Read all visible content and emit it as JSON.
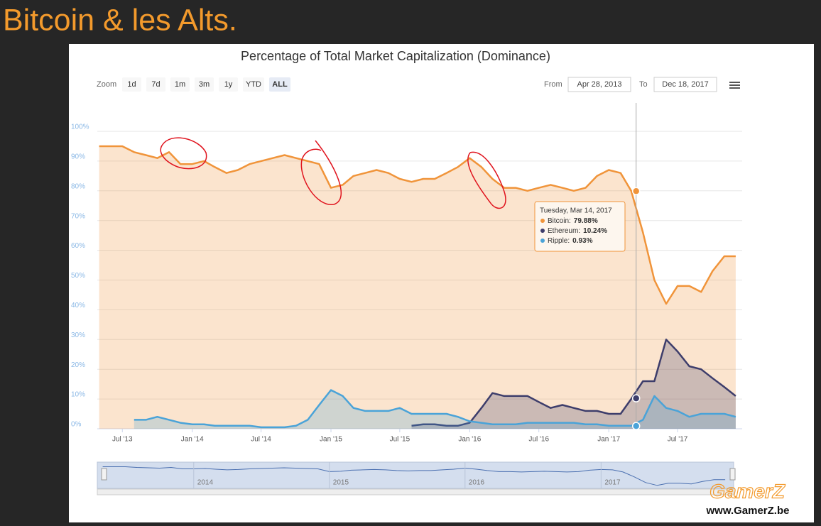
{
  "slide_title": "Bitcoin & les Alts.",
  "chart_data": {
    "type": "area",
    "title": "Percentage of Total Market Capitalization (Dominance)",
    "x": [
      "2013-05",
      "2013-06",
      "2013-07",
      "2013-08",
      "2013-09",
      "2013-10",
      "2013-11",
      "2013-12",
      "2014-01",
      "2014-02",
      "2014-03",
      "2014-04",
      "2014-05",
      "2014-06",
      "2014-07",
      "2014-08",
      "2014-09",
      "2014-10",
      "2014-11",
      "2014-12",
      "2015-01",
      "2015-02",
      "2015-03",
      "2015-04",
      "2015-05",
      "2015-06",
      "2015-07",
      "2015-08",
      "2015-09",
      "2015-10",
      "2015-11",
      "2015-12",
      "2016-01",
      "2016-02",
      "2016-03",
      "2016-04",
      "2016-05",
      "2016-06",
      "2016-07",
      "2016-08",
      "2016-09",
      "2016-10",
      "2016-11",
      "2016-12",
      "2017-01",
      "2017-02",
      "2017-03",
      "2017-04",
      "2017-05",
      "2017-06",
      "2017-07",
      "2017-08",
      "2017-09",
      "2017-10",
      "2017-11",
      "2017-12"
    ],
    "series": [
      {
        "name": "Bitcoin",
        "color": "#f0943a",
        "values": [
          95,
          95,
          95,
          93,
          92,
          91,
          93,
          89,
          89,
          90,
          88,
          86,
          87,
          89,
          90,
          91,
          92,
          91,
          90,
          89,
          81,
          82,
          85,
          86,
          87,
          86,
          84,
          83,
          84,
          84,
          86,
          88,
          91,
          88,
          84,
          81,
          81,
          80,
          81,
          82,
          81,
          80,
          81,
          85,
          87,
          86,
          80,
          66,
          50,
          42,
          48,
          48,
          46,
          53,
          58,
          58
        ]
      },
      {
        "name": "Ethereum",
        "color": "#3d3d6b",
        "values": [
          null,
          null,
          null,
          null,
          null,
          null,
          null,
          null,
          null,
          null,
          null,
          null,
          null,
          null,
          null,
          null,
          null,
          null,
          null,
          null,
          null,
          null,
          null,
          null,
          null,
          null,
          null,
          1,
          1.5,
          1.5,
          1,
          1,
          2,
          7,
          12,
          11,
          11,
          11,
          9,
          7,
          8,
          7,
          6,
          6,
          5,
          5,
          10,
          16,
          16,
          30,
          26,
          21,
          20,
          17,
          14,
          11
        ]
      },
      {
        "name": "Ripple",
        "color": "#4aa3d8",
        "values": [
          null,
          null,
          null,
          3,
          3,
          4,
          3,
          2,
          1.5,
          1.5,
          1,
          1,
          1,
          1,
          0.5,
          0.5,
          0.5,
          1,
          3,
          8,
          13,
          11,
          7,
          6,
          6,
          6,
          7,
          5,
          5,
          5,
          5,
          4,
          2.5,
          2,
          1.5,
          1.5,
          1.5,
          2,
          2,
          2,
          2,
          2,
          1.5,
          1.5,
          1,
          1,
          1,
          3,
          11,
          7,
          6,
          4,
          5,
          5,
          5,
          4
        ]
      }
    ],
    "xlim": [
      "Apr 28, 2013",
      "Dec 18, 2017"
    ],
    "xticks": [
      {
        "value": "2013-07",
        "label": "Jul '13"
      },
      {
        "value": "2014-01",
        "label": "Jan '14"
      },
      {
        "value": "2014-07",
        "label": "Jul '14"
      },
      {
        "value": "2015-01",
        "label": "Jan '15"
      },
      {
        "value": "2015-07",
        "label": "Jul '15"
      },
      {
        "value": "2016-01",
        "label": "Jan '16"
      },
      {
        "value": "2016-07",
        "label": "Jul '16"
      },
      {
        "value": "2017-01",
        "label": "Jan '17"
      },
      {
        "value": "2017-07",
        "label": "Jul '17"
      }
    ],
    "ylim": [
      0,
      100
    ],
    "yticks": [
      {
        "value": 0,
        "label": "0%"
      },
      {
        "value": 10,
        "label": "10%"
      },
      {
        "value": 20,
        "label": "20%"
      },
      {
        "value": 30,
        "label": "30%"
      },
      {
        "value": 40,
        "label": "40%"
      },
      {
        "value": 50,
        "label": "50%"
      },
      {
        "value": 60,
        "label": "60%"
      },
      {
        "value": 70,
        "label": "70%"
      },
      {
        "value": 80,
        "label": "80%"
      },
      {
        "value": 90,
        "label": "90%"
      },
      {
        "value": 100,
        "label": "100%"
      }
    ],
    "grid": true,
    "zoom_label": "Zoom",
    "zoom_buttons": [
      "1d",
      "7d",
      "1m",
      "3m",
      "1y",
      "YTD",
      "ALL"
    ],
    "zoom_selected": "ALL",
    "from_label": "From",
    "to_label": "To",
    "tooltip": {
      "date": "Tuesday, Mar 14, 2017",
      "items": [
        {
          "label": "Bitcoin:",
          "value": 79.88,
          "value_label": "79.88%"
        },
        {
          "label": "Ethereum:",
          "value": 10.24,
          "value_label": "10.24%"
        },
        {
          "label": "Ripple:",
          "value": 0.93,
          "value_label": "0.93%"
        }
      ]
    },
    "navigator_labels": [
      "2014",
      "2015",
      "2016",
      "2017"
    ]
  },
  "watermark": {
    "brand": "GamerZ",
    "url": "www.GamerZ.be"
  }
}
